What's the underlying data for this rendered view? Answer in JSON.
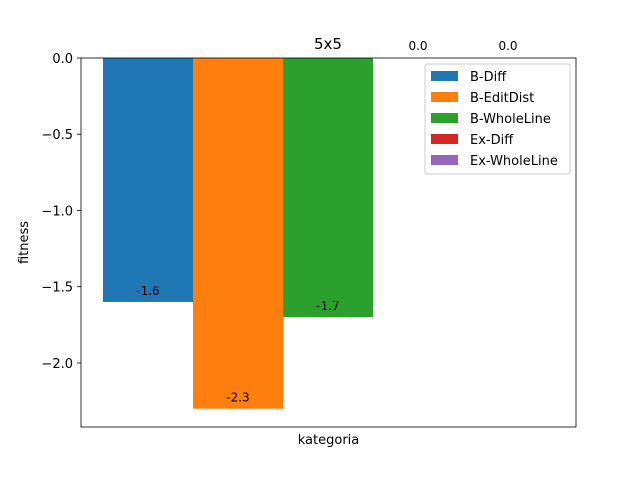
{
  "chart_data": {
    "type": "bar",
    "title": "5x5",
    "xlabel": "kategoria",
    "ylabel": "fitness",
    "ylim": [
      -2.42,
      0.0
    ],
    "yticks": [
      0.0,
      -0.5,
      -1.0,
      -1.5,
      -2.0
    ],
    "ytick_labels": [
      "0.0",
      "−0.5",
      "−1.0",
      "−1.5",
      "−2.0"
    ],
    "grid": false,
    "legend_position": "top-right",
    "series": [
      {
        "name": "B-Diff",
        "value": -1.6,
        "label": "-1.6",
        "color": "#1f77b4"
      },
      {
        "name": "B-EditDist",
        "value": -2.3,
        "label": "-2.3",
        "color": "#ff7f0e"
      },
      {
        "name": "B-WholeLine",
        "value": -1.7,
        "label": "-1.7",
        "color": "#2ca02c"
      },
      {
        "name": "Ex-Diff",
        "value": 0.0,
        "label": "0.0",
        "color": "#d62728"
      },
      {
        "name": "Ex-WholeLine",
        "value": 0.0,
        "label": "0.0",
        "color": "#9467bd"
      }
    ]
  }
}
